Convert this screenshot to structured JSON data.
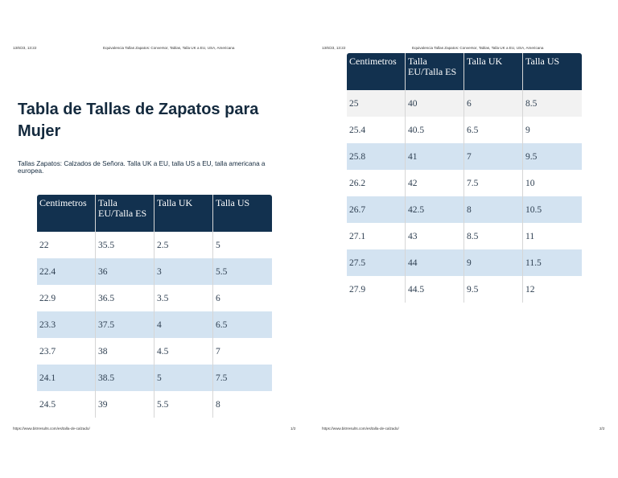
{
  "pages": [
    {
      "header_date": "13/6/23, 13:22",
      "header_title": "Equivalencia Tallas Zapatos: Conversor, Tablas, Talla UK a EU, USA, Americana",
      "title": "Tabla de Tallas de Zapatos para Mujer",
      "subtitle": "Tallas Zapatos: Calzados de Señora. Talla UK a EU, talla US a EU, talla americana a europea.",
      "footer_url": "https://www.bitrresults.com/es/talla-de-calzado/",
      "page_number": "1/2"
    },
    {
      "header_date": "13/6/23, 13:22",
      "header_title": "Equivalencia Tallas Zapatos: Conversor, Tablas, Talla UK a EU, USA, Americana",
      "footer_url": "https://www.bitrresults.com/es/talla-de-calzado/",
      "page_number": "2/2"
    }
  ],
  "table": {
    "headers": [
      "Centimetros",
      "Talla EU/Talla ES",
      "Talla UK",
      "Talla US"
    ],
    "page1_rows": [
      [
        "22",
        "35.5",
        "2.5",
        "5"
      ],
      [
        "22.4",
        "36",
        "3",
        "5.5"
      ],
      [
        "22.9",
        "36.5",
        "3.5",
        "6"
      ],
      [
        "23.3",
        "37.5",
        "4",
        "6.5"
      ],
      [
        "23.7",
        "38",
        "4.5",
        "7"
      ],
      [
        "24.1",
        "38.5",
        "5",
        "7.5"
      ],
      [
        "24.5",
        "39",
        "5.5",
        "8"
      ]
    ],
    "page2_rows": [
      [
        "25",
        "40",
        "6",
        "8.5"
      ],
      [
        "25.4",
        "40.5",
        "6.5",
        "9"
      ],
      [
        "25.8",
        "41",
        "7",
        "9.5"
      ],
      [
        "26.2",
        "42",
        "7.5",
        "10"
      ],
      [
        "26.7",
        "42.5",
        "8",
        "10.5"
      ],
      [
        "27.1",
        "43",
        "8.5",
        "11"
      ],
      [
        "27.5",
        "44",
        "9",
        "11.5"
      ],
      [
        "27.9",
        "44.5",
        "9.5",
        "12"
      ]
    ]
  },
  "colors": {
    "header_bg": "#12314f",
    "band_bg": "#d3e3f1",
    "title_text": "#142a3e"
  }
}
